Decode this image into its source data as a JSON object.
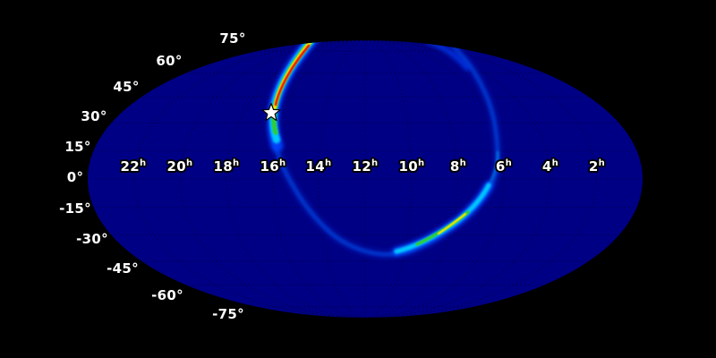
{
  "chart_data": {
    "type": "heatmap",
    "title": "",
    "projection": "mollweide all-sky map",
    "colormap": "jet",
    "grid": "dotted graticule, RA every 2h, Dec every 15deg",
    "legend_position": "none",
    "ra_tick_labels": [
      "22h",
      "20h",
      "18h",
      "16h",
      "14h",
      "12h",
      "10h",
      "8h",
      "6h",
      "4h",
      "2h"
    ],
    "dec_tick_labels": [
      "75°",
      "60°",
      "45°",
      "30°",
      "15°",
      "0°",
      "-15°",
      "-30°",
      "-45°",
      "-60°",
      "-75°"
    ],
    "marker": {
      "symbol": "star",
      "ra_hours": 16.5,
      "dec_degrees": 35,
      "color": "#ffffff"
    },
    "ring": {
      "description": "probability localization annulus (jet colormap over dark blue sky)",
      "points_approx_ra_dec": [
        [
          16.6,
          75
        ],
        [
          16.5,
          35
        ],
        [
          15.8,
          10
        ],
        [
          14.8,
          -15
        ],
        [
          11.9,
          -39
        ],
        [
          8.2,
          -26
        ],
        [
          6.2,
          10
        ],
        [
          6.6,
          45
        ],
        [
          7.6,
          68
        ]
      ],
      "bright_segments": [
        {
          "from_ra_dec": [
            16.8,
            72
          ],
          "to_ra_dec": [
            16.5,
            38
          ],
          "peak_color": "#e81600"
        },
        {
          "from_ra_dec": [
            9.3,
            -31
          ],
          "to_ra_dec": [
            7.6,
            -18
          ],
          "peak_color": "#ffe400"
        }
      ]
    }
  },
  "labels": {
    "dec": [
      {
        "text": "75°"
      },
      {
        "text": "60°"
      },
      {
        "text": "45°"
      },
      {
        "text": "30°"
      },
      {
        "text": "15°"
      },
      {
        "text": "0°"
      },
      {
        "text": "-15°"
      },
      {
        "text": "-30°"
      },
      {
        "text": "-45°"
      },
      {
        "text": "-60°"
      },
      {
        "text": "-75°"
      }
    ],
    "ra": [
      {
        "value": "22",
        "sup": "h"
      },
      {
        "value": "20",
        "sup": "h"
      },
      {
        "value": "18",
        "sup": "h"
      },
      {
        "value": "16",
        "sup": "h"
      },
      {
        "value": "14",
        "sup": "h"
      },
      {
        "value": "12",
        "sup": "h"
      },
      {
        "value": "10",
        "sup": "h"
      },
      {
        "value": "8",
        "sup": "h"
      },
      {
        "value": "6",
        "sup": "h"
      },
      {
        "value": "4",
        "sup": "h"
      },
      {
        "value": "2",
        "sup": "h"
      }
    ]
  },
  "colors": {
    "background": "#000000",
    "sky": "#000085",
    "grid": "#000000",
    "ring_glow": "#0a2fd0",
    "ring_faint": "#0535cf",
    "ring_blue": "#0041ff",
    "ring_cyan": "#00c8ff",
    "ring_green": "#2ecc40",
    "ring_yellow": "#ffe400",
    "ring_red": "#e81600",
    "star_fill": "#ffffff",
    "star_outline": "#000000",
    "text": "#ffffff"
  }
}
